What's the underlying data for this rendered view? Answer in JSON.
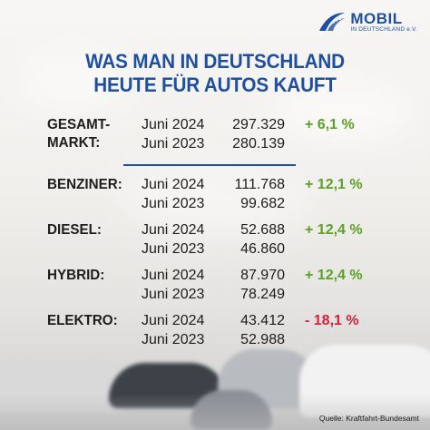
{
  "logo": {
    "name": "MOBIL",
    "subtitle": "IN DEUTSCHLAND e.V.",
    "brand_color": "#1f4fa0"
  },
  "title": {
    "line1": "WAS MAN IN DEUTSCHLAND",
    "line2": "HEUTE FÜR AUTOS KAUFT"
  },
  "rows": [
    {
      "category_line1": "GESAMT-",
      "category_line2": "MARKT:",
      "period1": "Juni 2024",
      "value1": "297.329",
      "period2": "Juni 2023",
      "value2": "280.139",
      "change": "+ 6,1 %",
      "trend": "up"
    },
    {
      "category_line1": "BENZINER:",
      "category_line2": "",
      "period1": "Juni 2024",
      "value1": "111.768",
      "period2": "Juni 2023",
      "value2": "99.682",
      "change": "+ 12,1 %",
      "trend": "up"
    },
    {
      "category_line1": "DIESEL:",
      "category_line2": "",
      "period1": "Juni 2024",
      "value1": "52.688",
      "period2": "Juni 2023",
      "value2": "46.860",
      "change": "+ 12,4 %",
      "trend": "up"
    },
    {
      "category_line1": "HYBRID:",
      "category_line2": "",
      "period1": "Juni 2024",
      "value1": "87.970",
      "period2": "Juni 2023",
      "value2": "78.249",
      "change": "+ 12,4 %",
      "trend": "up"
    },
    {
      "category_line1": "ELEKTRO:",
      "category_line2": "",
      "period1": "Juni 2024",
      "value1": "43.412",
      "period2": "Juni 2023",
      "value2": "52.988",
      "change": "- 18,1 %",
      "trend": "down"
    }
  ],
  "colors": {
    "increase": "#5aa126",
    "decrease": "#d4213d",
    "heading": "#1f4fa0"
  },
  "source": "Quelle: Kraftfahrt-Bundesamt"
}
